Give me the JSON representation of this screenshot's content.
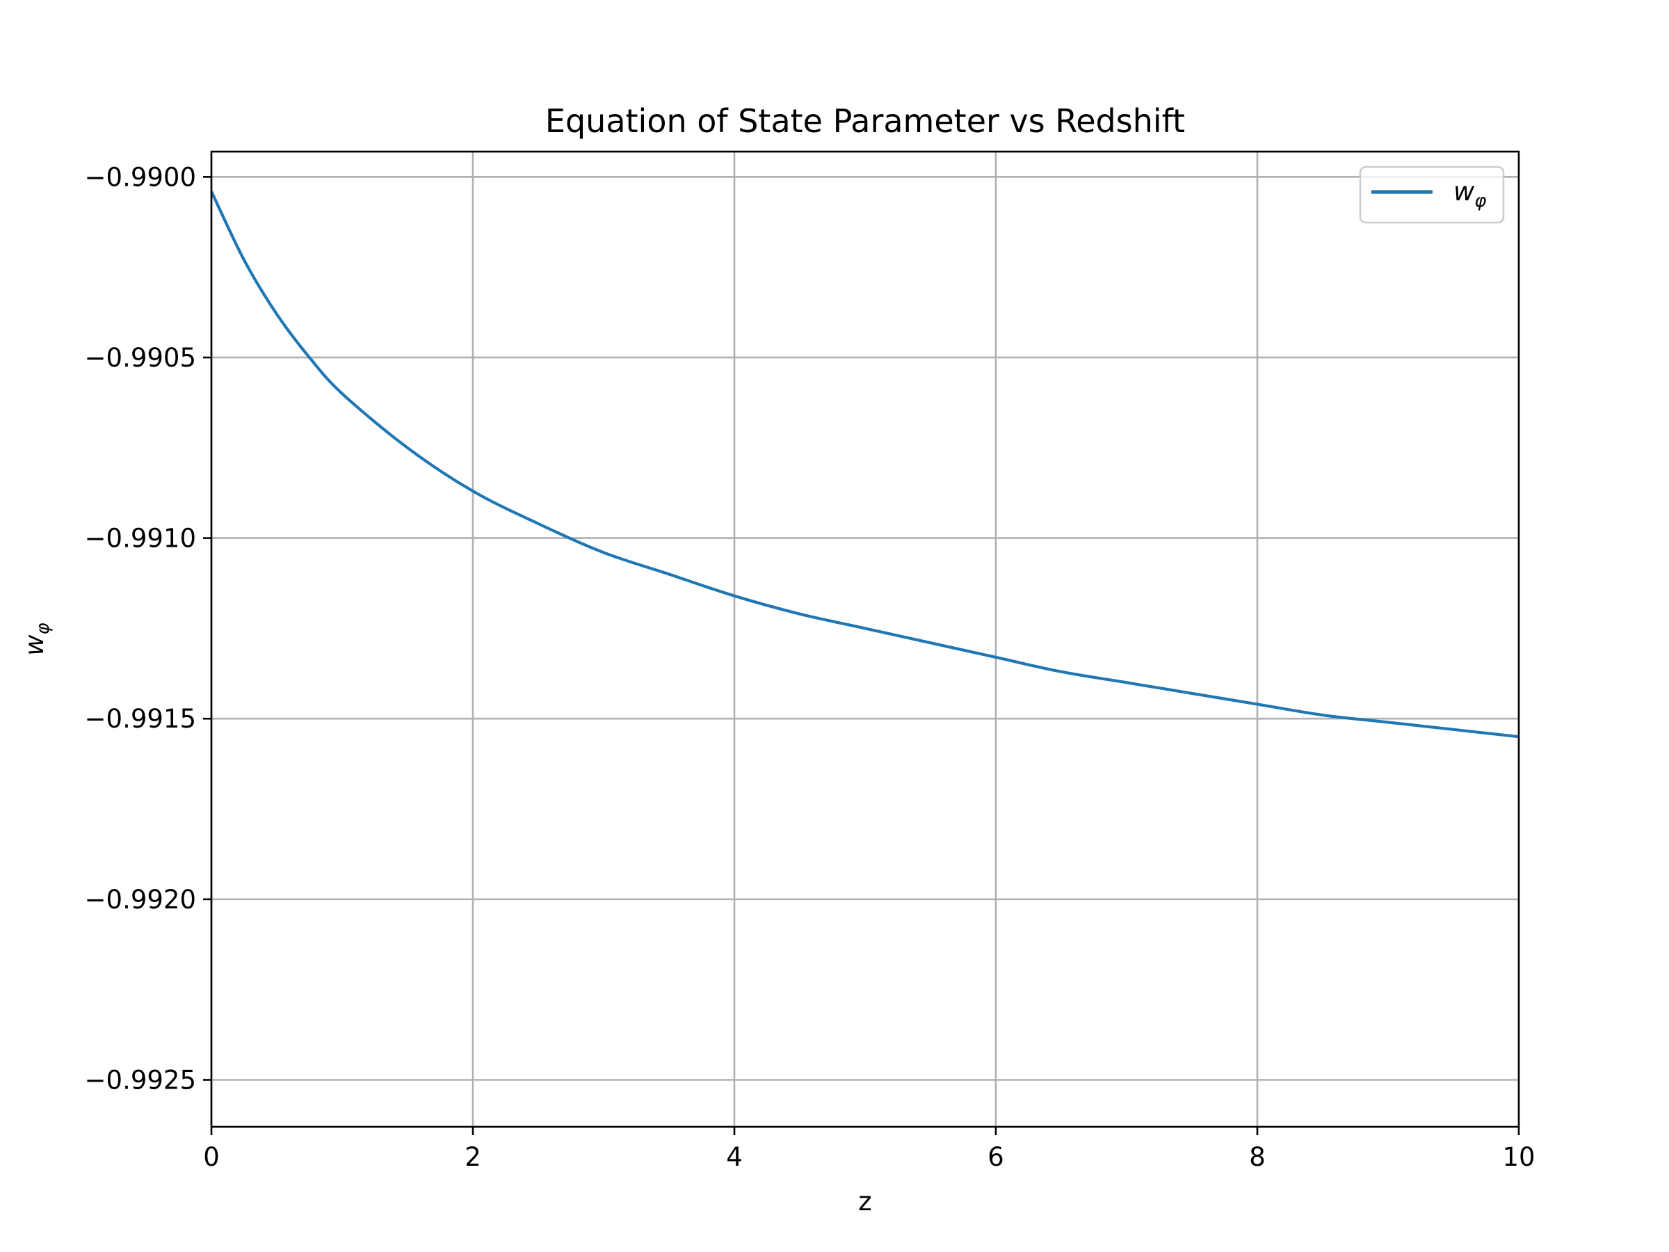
{
  "chart_data": {
    "type": "line",
    "title": "Equation of State Parameter vs Redshift",
    "xlabel": "z",
    "ylabel": "w",
    "ylabel_subscript": "φ",
    "xlim": [
      0,
      10
    ],
    "ylim": [
      -0.99263,
      -0.98993
    ],
    "grid": true,
    "legend_position": "top-right",
    "x_ticks": [
      0,
      2,
      4,
      6,
      8,
      10
    ],
    "x_tick_labels": [
      "0",
      "2",
      "4",
      "6",
      "8",
      "10"
    ],
    "y_ticks": [
      -0.99,
      -0.9905,
      -0.991,
      -0.9915,
      -0.992,
      -0.9925
    ],
    "y_tick_labels": [
      "−0.9900",
      "−0.9905",
      "−0.9910",
      "−0.9915",
      "−0.9920",
      "−0.9925"
    ],
    "series": [
      {
        "name": "w",
        "name_subscript": "φ",
        "color": "#1f77b4",
        "x": [
          0,
          0.25,
          0.5,
          0.75,
          1,
          1.5,
          2,
          2.5,
          3,
          3.5,
          4,
          4.5,
          5,
          5.5,
          6,
          6.5,
          7,
          7.5,
          8,
          8.5,
          9,
          9.5,
          10
        ],
        "y": [
          -0.99004,
          -0.99023,
          -0.99038,
          -0.9905,
          -0.9906,
          -0.99075,
          -0.99087,
          -0.99096,
          -0.99104,
          -0.9911,
          -0.99116,
          -0.99121,
          -0.99125,
          -0.99129,
          -0.99133,
          -0.99137,
          -0.9914,
          -0.99143,
          -0.99146,
          -0.99149,
          -0.99151,
          -0.99153,
          -0.99155
        ]
      }
    ]
  }
}
